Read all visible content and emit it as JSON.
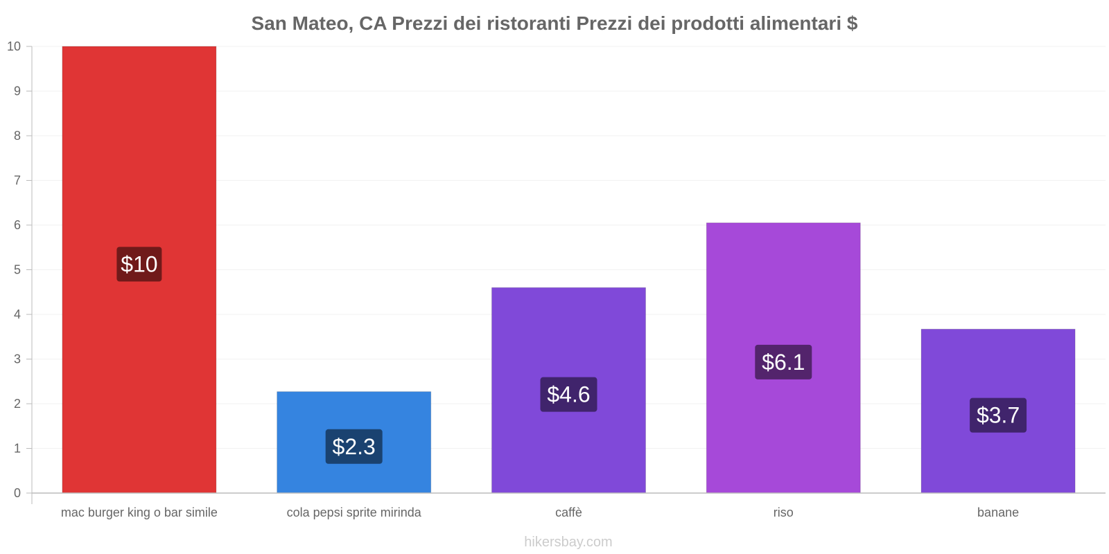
{
  "chart_data": {
    "type": "bar",
    "title": "San Mateo, CA Prezzi dei ristoranti Prezzi dei prodotti alimentari $",
    "xlabel": "",
    "ylabel": "",
    "ylim": [
      0,
      10
    ],
    "yticks": [
      0,
      1,
      2,
      3,
      4,
      5,
      6,
      7,
      8,
      9,
      10
    ],
    "grid": true,
    "categories": [
      "mac burger king o bar simile",
      "cola pepsi sprite mirinda",
      "caffè",
      "riso",
      "banane"
    ],
    "values": [
      10,
      2.27,
      4.6,
      6.05,
      3.67
    ],
    "value_labels": [
      "$10",
      "$2.3",
      "$4.6",
      "$6.1",
      "$3.7"
    ],
    "bar_colors": [
      "#e03535",
      "#3584e0",
      "#8049d9",
      "#a649d9",
      "#8049d9"
    ],
    "label_bg_colors": [
      "#701a1a",
      "#1a4270",
      "#40246c",
      "#53246c",
      "#40246c"
    ],
    "watermark": "hikersbay.com"
  }
}
